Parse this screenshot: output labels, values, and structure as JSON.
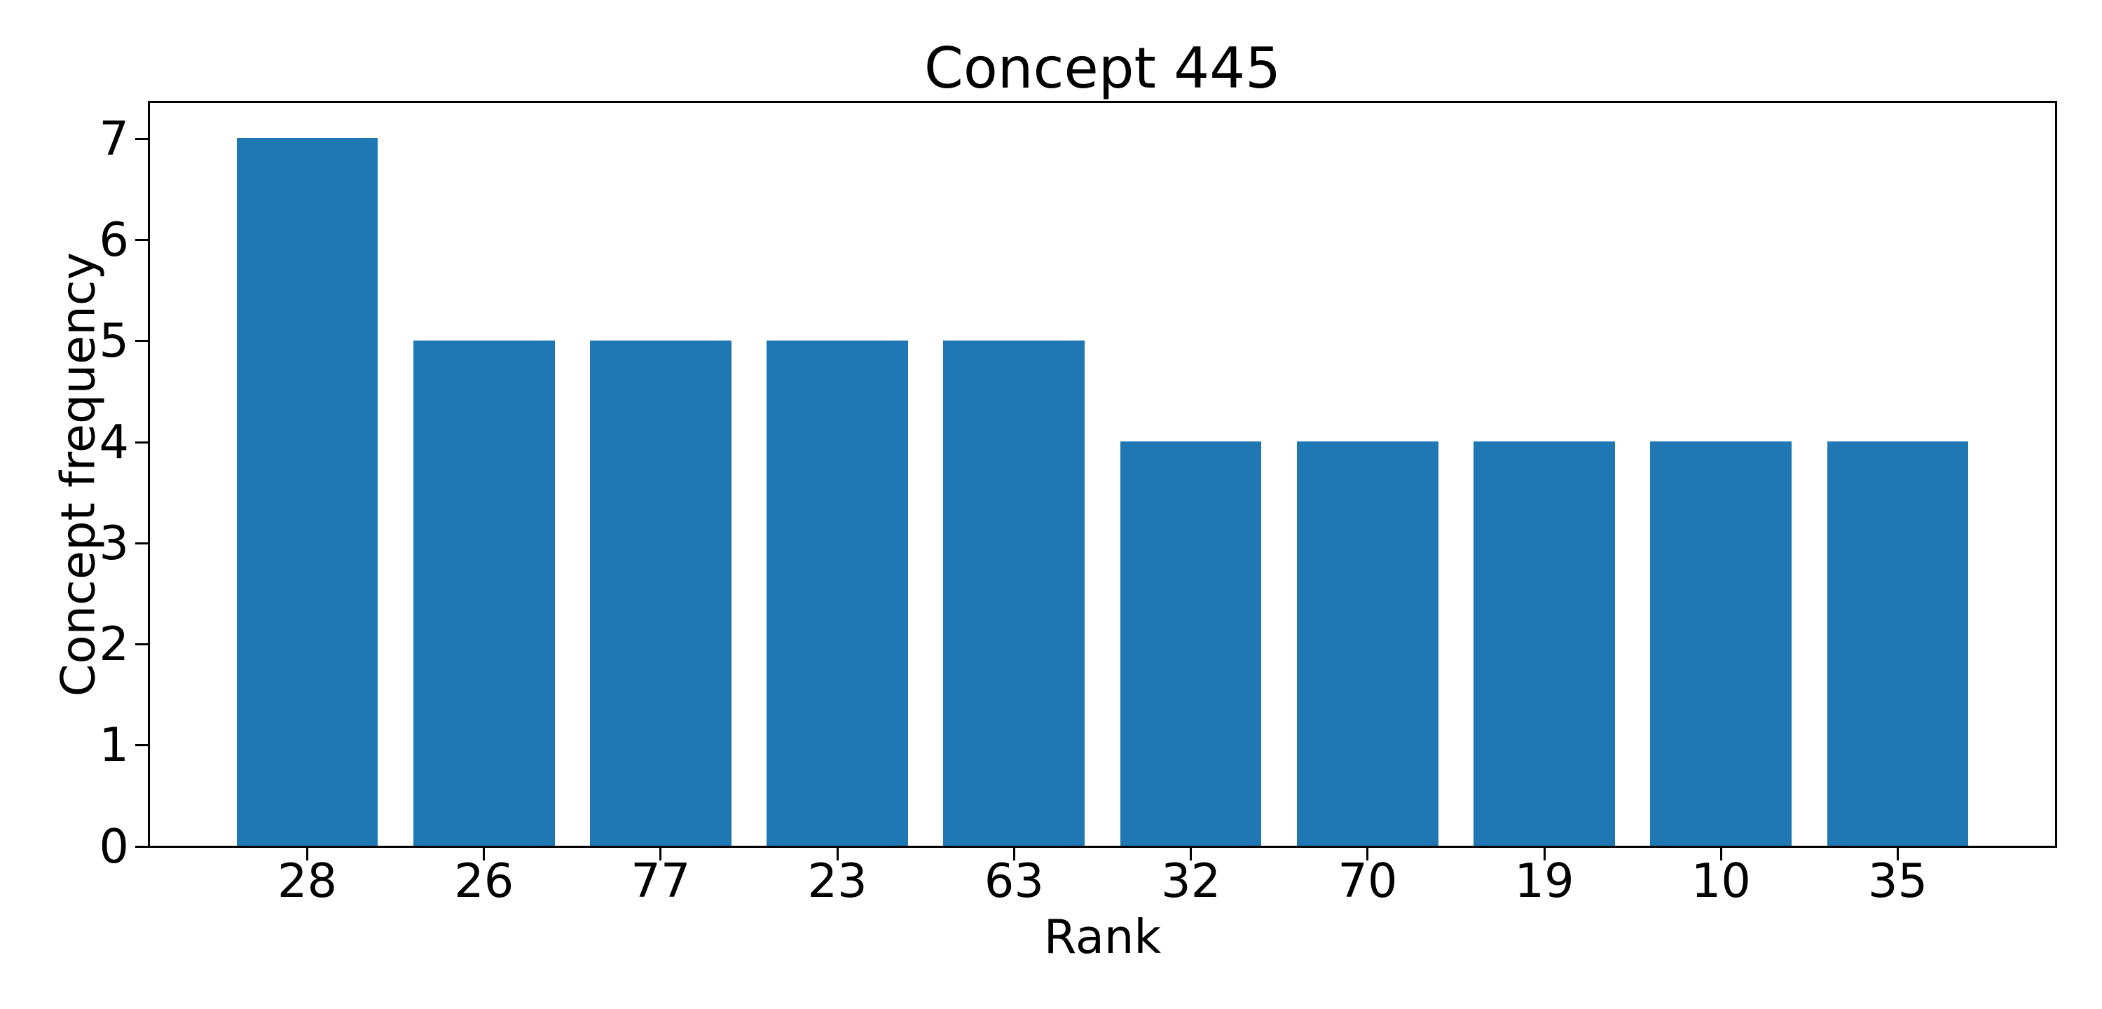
{
  "chart_data": {
    "type": "bar",
    "title": "Concept 445",
    "xlabel": "Rank",
    "ylabel": "Concept frequency",
    "categories": [
      "28",
      "26",
      "77",
      "23",
      "63",
      "32",
      "70",
      "19",
      "10",
      "35"
    ],
    "values": [
      7,
      5,
      5,
      5,
      5,
      4,
      4,
      4,
      4,
      4
    ],
    "yticks": [
      0,
      1,
      2,
      3,
      4,
      5,
      6,
      7
    ],
    "ylim": [
      0,
      7.35
    ],
    "bar_color": "#1f77b4",
    "spine_color": "#000000",
    "grid": false,
    "legend": {
      "visible": true,
      "position": "upper right",
      "entries": []
    }
  }
}
